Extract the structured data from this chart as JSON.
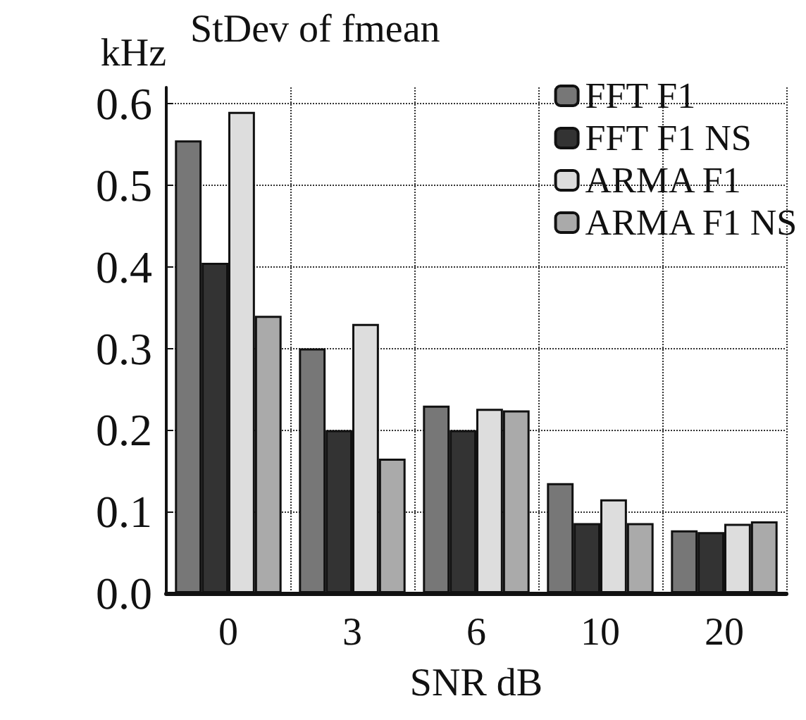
{
  "chart_data": {
    "type": "bar",
    "title": "StDev of fmean",
    "ylabel": "kHz",
    "xlabel": "SNR dB",
    "categories": [
      "0",
      "3",
      "6",
      "10",
      "20"
    ],
    "series": [
      {
        "name": "FFT F1",
        "color": "#777777",
        "values": [
          0.555,
          0.3,
          0.23,
          0.135,
          0.077
        ]
      },
      {
        "name": "FFT F1 NS",
        "color": "#333333",
        "values": [
          0.405,
          0.2,
          0.2,
          0.086,
          0.075
        ]
      },
      {
        "name": "ARMA F1",
        "color": "#dddddd",
        "values": [
          0.59,
          0.33,
          0.226,
          0.115,
          0.085
        ]
      },
      {
        "name": "ARMA F1 NS",
        "color": "#aaaaaa",
        "values": [
          0.34,
          0.165,
          0.224,
          0.086,
          0.088
        ]
      }
    ],
    "ylim": [
      0,
      0.62
    ],
    "yticks": [
      {
        "value": 0,
        "label": "0.0"
      },
      0.1,
      0.2,
      0.3,
      0.4,
      0.5,
      0.6
    ],
    "grid": true,
    "legend": "top right"
  }
}
